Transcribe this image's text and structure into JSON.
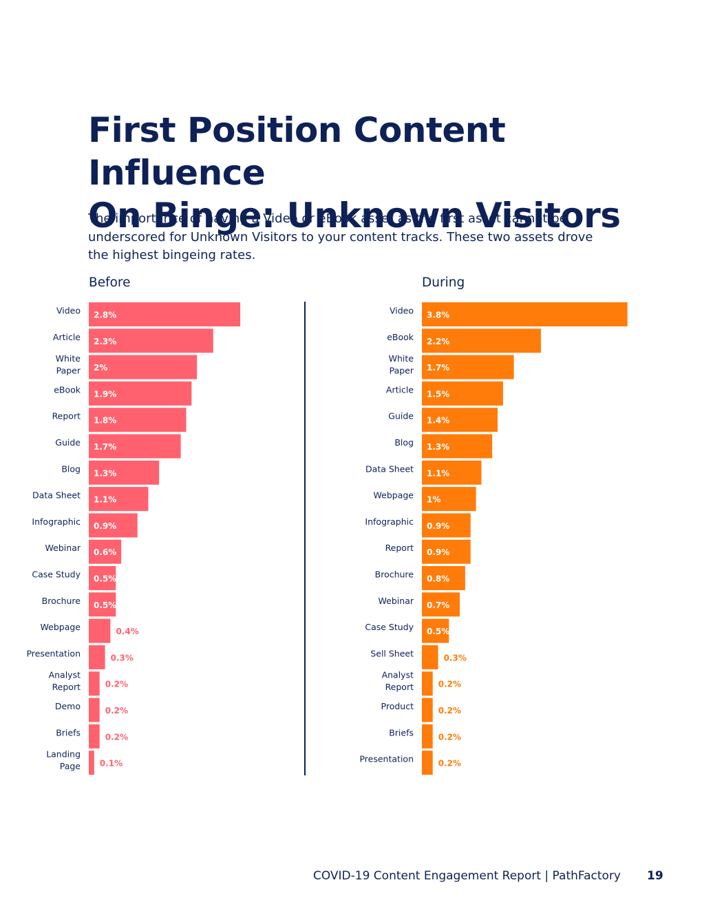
{
  "page": {
    "title_line1": "First Position Content Influence",
    "title_line2": "On Binge: Unknown Visitors",
    "intro_line1": "The importance of having a Video or eBook asset as the first asset cannot be",
    "intro_line2": "underscored for Unknown Visitors to your content tracks. These two assets drove",
    "intro_line3": "the highest bingeing rates.",
    "footer_text": "COVID-19 Content Engagement Report  |  PathFactory",
    "page_number": "19"
  },
  "chart_data": [
    {
      "type": "bar",
      "orientation": "horizontal",
      "title": "Before",
      "color": "#ff626e",
      "categories": [
        "Video",
        "Article",
        "White Paper",
        "eBook",
        "Report",
        "Guide",
        "Blog",
        "Data Sheet",
        "Infographic",
        "Webinar",
        "Case Study",
        "Brochure",
        "Webpage",
        "Presentation",
        "Analyst Report",
        "Demo",
        "Briefs",
        "Landing Page"
      ],
      "values": [
        2.8,
        2.3,
        2,
        1.9,
        1.8,
        1.7,
        1.3,
        1.1,
        0.9,
        0.6,
        0.5,
        0.5,
        0.4,
        0.3,
        0.2,
        0.2,
        0.2,
        0.1
      ],
      "labels": [
        "2.8%",
        "2.3%",
        "2%",
        "1.9%",
        "1.8%",
        "1.7%",
        "1.3%",
        "1.1%",
        "0.9%",
        "0.6%",
        "0.5%",
        "0.5%",
        "0.4%",
        "0.3%",
        "0.2%",
        "0.2%",
        "0.2%",
        "0.1%"
      ],
      "unit": "%"
    },
    {
      "type": "bar",
      "orientation": "horizontal",
      "title": "During",
      "color": "#ff7c0a",
      "categories": [
        "Video",
        "eBook",
        "White Paper",
        "Article",
        "Guide",
        "Blog",
        "Data Sheet",
        "Webpage",
        "Infographic",
        "Report",
        "Brochure",
        "Webinar",
        "Case Study",
        "Sell Sheet",
        "Analyst Report",
        "Product",
        "Briefs",
        "Presentation"
      ],
      "values": [
        3.8,
        2.2,
        1.7,
        1.5,
        1.4,
        1.3,
        1.1,
        1,
        0.9,
        0.9,
        0.8,
        0.7,
        0.5,
        0.3,
        0.2,
        0.2,
        0.2,
        0.2
      ],
      "labels": [
        "3.8%",
        "2.2%",
        "1.7%",
        "1.5%",
        "1.4%",
        "1.3%",
        "1.1%",
        "1%",
        "0.9%",
        "0.9%",
        "0.8%",
        "0.7%",
        "0.5%",
        "0.3%",
        "0.2%",
        "0.2%",
        "0.2%",
        "0.2%"
      ],
      "unit": "%"
    }
  ]
}
